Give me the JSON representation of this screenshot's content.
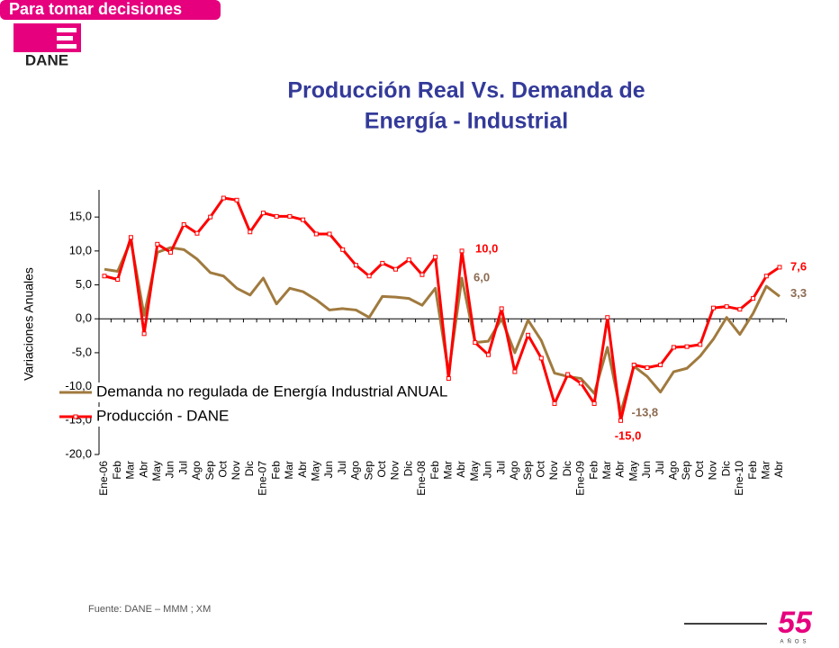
{
  "branding": {
    "tagline": "Para tomar decisiones",
    "logo": "DANE",
    "anniversary": "55",
    "anniversary_unit": "AÑOS"
  },
  "source": "Fuente: DANE – MMM ; XM",
  "chart_data": {
    "type": "line",
    "title": "Producción Real Vs. Demanda de",
    "subtitle": "Energía  - Industrial",
    "y_label": "Variaciones Anuales",
    "categories": [
      "Ene-06",
      "Feb",
      "Mar",
      "Abr",
      "May",
      "Jun",
      "Jul",
      "Ago",
      "Sep",
      "Oct",
      "Nov",
      "Dic",
      "Ene-07",
      "Feb",
      "Mar",
      "Abr",
      "May",
      "Jun",
      "Jul",
      "Ago",
      "Sep",
      "Oct",
      "Nov",
      "Dic",
      "Ene-08",
      "Feb",
      "Mar",
      "Abr",
      "May",
      "Jun",
      "Jul",
      "Ago",
      "Sep",
      "Oct",
      "Nov",
      "Dic",
      "Ene-09",
      "Feb",
      "Mar",
      "Abr",
      "May",
      "Jun",
      "Jul",
      "Ago",
      "Sep",
      "Oct",
      "Nov",
      "Dic",
      "Ene-10",
      "Feb",
      "Mar",
      "Abr"
    ],
    "series": [
      {
        "name": "Demanda no regulada de Energía Industrial ANUAL",
        "color": "#a07a3e",
        "markers": false,
        "values": [
          7.3,
          7.0,
          11.5,
          0.5,
          9.8,
          10.5,
          10.2,
          8.8,
          6.8,
          6.3,
          4.5,
          3.5,
          6.0,
          2.2,
          4.5,
          4.0,
          2.8,
          1.3,
          1.5,
          1.3,
          0.2,
          3.3,
          3.2,
          3.0,
          2.0,
          4.5,
          -8.0,
          6.0,
          -3.5,
          -3.3,
          0.0,
          -5.0,
          -0.2,
          -3.2,
          -8.0,
          -8.5,
          -8.8,
          -11.0,
          -4.2,
          -13.8,
          -7.0,
          -8.5,
          -10.8,
          -7.8,
          -7.3,
          -5.5,
          -3.0,
          0.2,
          -2.3,
          0.8,
          4.8,
          3.3
        ],
        "value_labels": [
          null,
          null,
          null,
          null,
          null,
          null,
          null,
          null,
          null,
          null,
          null,
          null,
          null,
          null,
          null,
          null,
          null,
          null,
          null,
          null,
          null,
          null,
          null,
          null,
          null,
          null,
          null,
          "6,0",
          null,
          null,
          null,
          null,
          null,
          null,
          null,
          null,
          null,
          null,
          null,
          "-13,8",
          null,
          null,
          null,
          null,
          null,
          null,
          null,
          null,
          null,
          null,
          null,
          "3,3"
        ]
      },
      {
        "name": "Producción - DANE",
        "color": "#ff0000",
        "markers": true,
        "values": [
          6.3,
          5.8,
          12.0,
          -2.2,
          11.0,
          9.8,
          13.9,
          12.6,
          15.0,
          17.8,
          17.5,
          12.8,
          15.6,
          15.1,
          15.1,
          14.6,
          12.5,
          12.5,
          10.2,
          7.9,
          6.3,
          8.2,
          7.3,
          8.7,
          6.5,
          9.1,
          -8.8,
          10.0,
          -3.5,
          -5.3,
          1.5,
          -7.8,
          -2.4,
          -5.8,
          -12.5,
          -8.2,
          -9.5,
          -12.5,
          0.2,
          -15.0,
          -6.8,
          -7.2,
          -6.8,
          -4.2,
          -4.1,
          -3.8,
          1.6,
          1.8,
          1.4,
          3.0,
          6.3,
          7.6
        ],
        "value_labels": [
          null,
          null,
          null,
          null,
          null,
          null,
          null,
          null,
          null,
          null,
          null,
          null,
          null,
          null,
          null,
          null,
          null,
          null,
          null,
          null,
          null,
          null,
          null,
          null,
          null,
          null,
          null,
          "10,0",
          null,
          null,
          null,
          null,
          null,
          null,
          null,
          null,
          null,
          null,
          null,
          "-15,0",
          null,
          null,
          null,
          null,
          null,
          null,
          null,
          null,
          null,
          null,
          null,
          "7,6"
        ]
      }
    ],
    "ylim": [
      -20,
      19
    ],
    "yticks": [
      {
        "value": -20,
        "label": "-20,0"
      },
      {
        "value": -15,
        "label": "-15,0"
      },
      {
        "value": -10,
        "label": "-10,0"
      },
      {
        "value": -5,
        "label": "-5,0"
      },
      {
        "value": 0,
        "label": "0,0"
      },
      {
        "value": 5,
        "label": "5,0"
      },
      {
        "value": 10,
        "label": "10,0"
      },
      {
        "value": 15,
        "label": "15,0"
      }
    ],
    "grid": false
  }
}
